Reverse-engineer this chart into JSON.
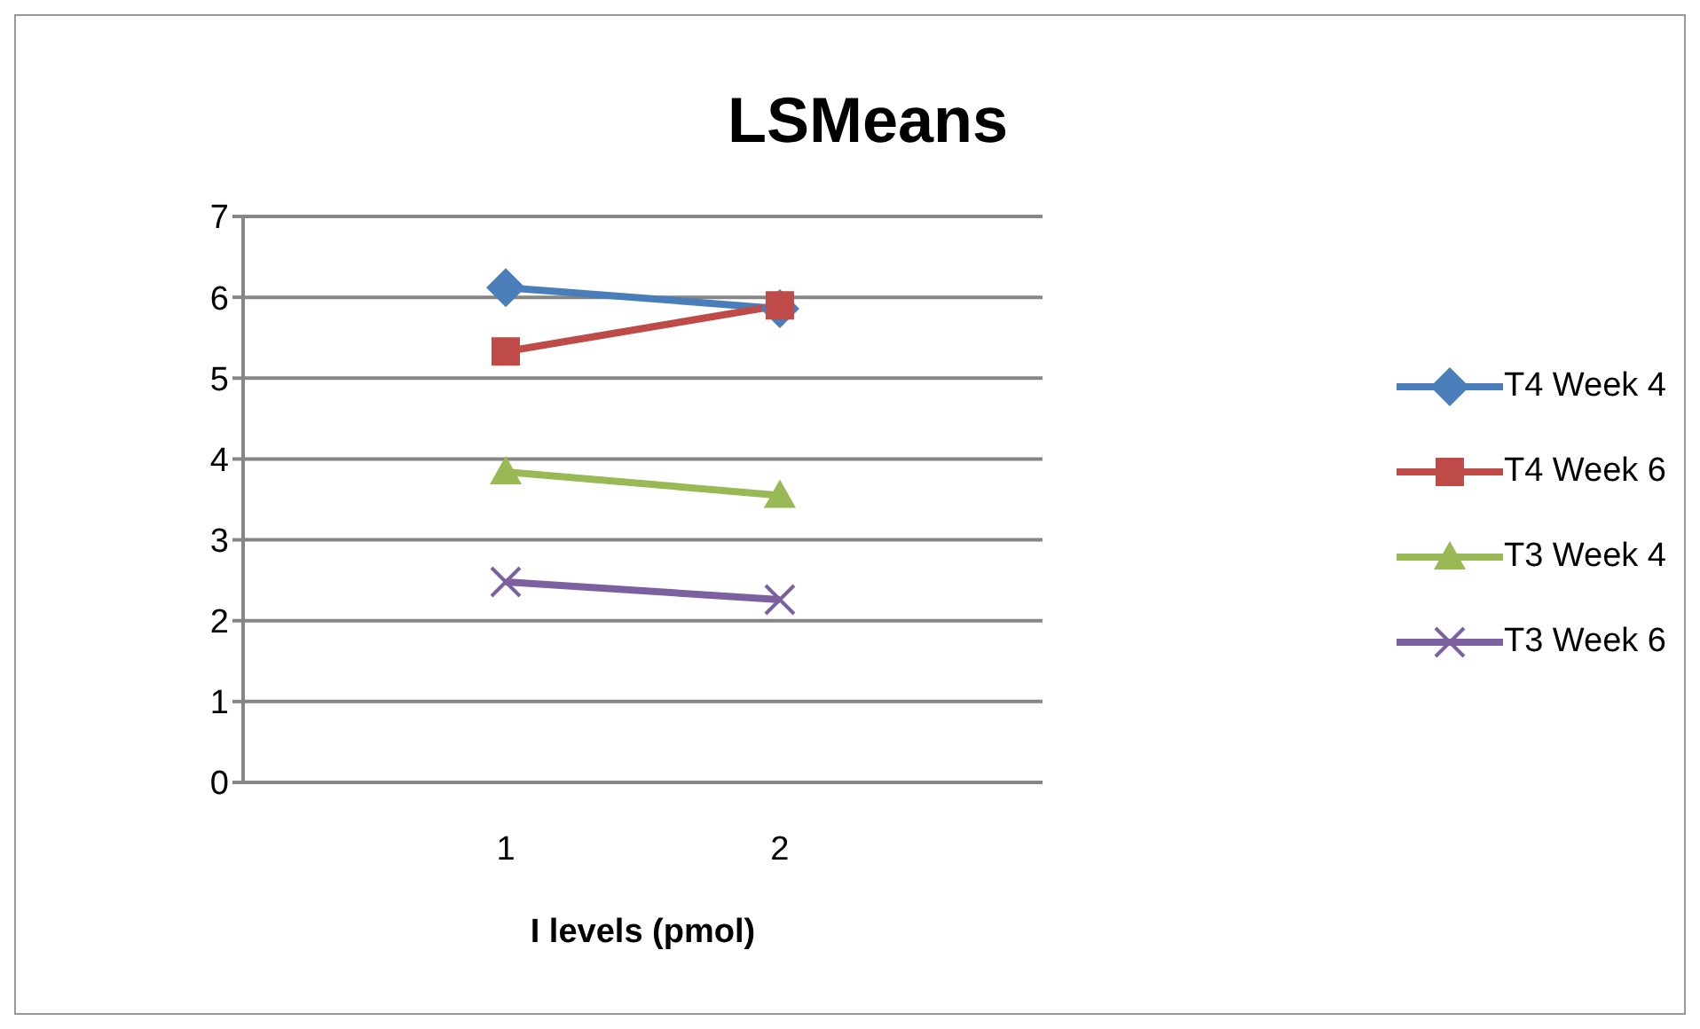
{
  "chart_data": {
    "type": "line",
    "title": "LSMeans",
    "xlabel": "I levels (pmol)",
    "categories": [
      "1",
      "2"
    ],
    "series": [
      {
        "name": "T4 Week 4",
        "color": "#4a7ebb",
        "marker": "diamond",
        "values": [
          6.12,
          5.86
        ]
      },
      {
        "name": "T4 Week 6",
        "color": "#be4b48",
        "marker": "square",
        "values": [
          5.33,
          5.9
        ]
      },
      {
        "name": "T3 Week 4",
        "color": "#98b954",
        "marker": "triangle",
        "values": [
          3.84,
          3.55
        ]
      },
      {
        "name": "T3 Week 6",
        "color": "#7d60a0",
        "marker": "cross",
        "values": [
          2.48,
          2.26
        ]
      }
    ],
    "ylim": [
      0,
      7
    ],
    "yticks": [
      0,
      1,
      2,
      3,
      4,
      5,
      6,
      7
    ],
    "grid": "y",
    "legend": "right"
  }
}
